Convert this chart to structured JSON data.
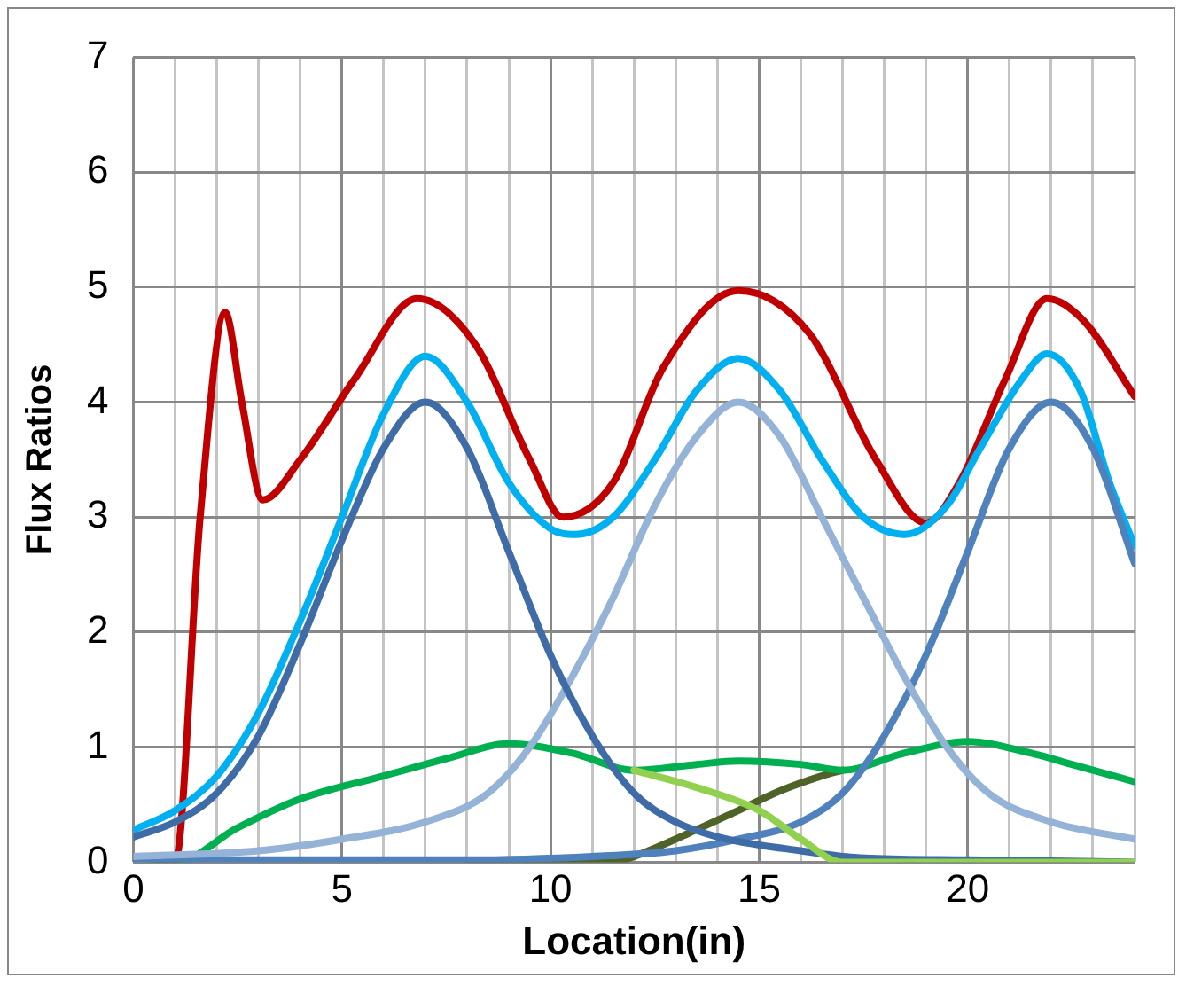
{
  "chart_data": {
    "type": "line",
    "xlabel": "Location(in)",
    "ylabel": "Flux Ratios",
    "xlim": [
      0,
      24
    ],
    "ylim": [
      0,
      7
    ],
    "xticks": [
      0,
      {
        "value": 1,
        "label": null
      },
      {
        "value": 2,
        "label": null
      },
      {
        "value": 3,
        "label": null
      },
      {
        "value": 4,
        "label": null
      },
      5,
      {
        "value": 6,
        "label": null
      },
      {
        "value": 7,
        "label": null
      },
      {
        "value": 8,
        "label": null
      },
      {
        "value": 9,
        "label": null
      },
      10,
      {
        "value": 11,
        "label": null
      },
      {
        "value": 12,
        "label": null
      },
      {
        "value": 13,
        "label": null
      },
      {
        "value": 14,
        "label": null
      },
      15,
      {
        "value": 16,
        "label": null
      },
      {
        "value": 17,
        "label": null
      },
      {
        "value": 18,
        "label": null
      },
      {
        "value": 19,
        "label": null
      },
      20,
      {
        "value": 21,
        "label": null
      },
      {
        "value": 22,
        "label": null
      },
      {
        "value": 23,
        "label": null
      },
      {
        "value": 24,
        "label": null
      }
    ],
    "yticks": [
      0,
      1,
      2,
      3,
      4,
      5,
      6,
      7
    ],
    "grid": true,
    "legend": false,
    "series": [
      {
        "color": "#92d050",
        "x": [
          12,
          13.5,
          15,
          16,
          17,
          20,
          24
        ],
        "values": [
          0.8,
          0.65,
          0.45,
          0.2,
          0,
          0,
          0
        ]
      },
      {
        "color": "#3f6ca6",
        "x": [
          0,
          1,
          2,
          3,
          4,
          5,
          6,
          7,
          8,
          9,
          10,
          11,
          12,
          13,
          14,
          15,
          16,
          17,
          18,
          20,
          22,
          24
        ],
        "values": [
          0.22,
          0.35,
          0.6,
          1.1,
          1.9,
          2.8,
          3.6,
          4.0,
          3.6,
          2.7,
          1.8,
          1.1,
          0.6,
          0.35,
          0.22,
          0.15,
          0.1,
          0.05,
          0.03,
          0.02,
          0.01,
          0
        ]
      },
      {
        "color": "#95b3d7",
        "x": [
          0,
          3,
          5,
          7,
          8.5,
          9.5,
          10.5,
          11.5,
          12.5,
          13.5,
          14.5,
          15.5,
          16.5,
          17.5,
          18.5,
          19.5,
          20.5,
          22,
          24
        ],
        "values": [
          0.05,
          0.1,
          0.2,
          0.35,
          0.6,
          1.0,
          1.6,
          2.3,
          3.1,
          3.7,
          4.0,
          3.7,
          3.0,
          2.3,
          1.6,
          1.0,
          0.6,
          0.35,
          0.2
        ]
      },
      {
        "color": "#4f81bd",
        "x": [
          0,
          4,
          8,
          11,
          13,
          14.5,
          16,
          17,
          18,
          19,
          20,
          21,
          22,
          23,
          24
        ],
        "values": [
          0.02,
          0.02,
          0.02,
          0.05,
          0.1,
          0.2,
          0.35,
          0.6,
          1.1,
          1.8,
          2.7,
          3.6,
          4.0,
          3.6,
          2.6
        ]
      },
      {
        "color": "#00b050",
        "x": [
          0,
          1,
          2.5,
          4,
          6,
          7.5,
          9,
          10.5,
          12,
          13.5,
          14.5,
          16,
          17,
          18.5,
          20,
          21.5,
          22.5,
          24
        ],
        "values": [
          0.05,
          0,
          0.3,
          0.55,
          0.75,
          0.9,
          1.03,
          0.95,
          0.8,
          0.85,
          0.88,
          0.85,
          0.8,
          0.95,
          1.05,
          0.95,
          0.85,
          0.7
        ]
      },
      {
        "color": "#4f6228",
        "x": [
          8,
          11.5,
          12,
          13.3,
          14.5,
          15.5,
          16.5,
          17
        ],
        "values": [
          0,
          0,
          0.05,
          0.25,
          0.45,
          0.62,
          0.75,
          0.8
        ]
      },
      {
        "color": "#00b0f0",
        "x": [
          0,
          1,
          2,
          3,
          4,
          5,
          6,
          7,
          8,
          9,
          10,
          10.6,
          11.5,
          12.5,
          13.5,
          14.5,
          15.5,
          16.5,
          17.5,
          18.5,
          19.5,
          20.3,
          21.3,
          21.9,
          22.7,
          23.4,
          24
        ],
        "values": [
          0.28,
          0.45,
          0.75,
          1.3,
          2.1,
          3.0,
          3.9,
          4.4,
          4.0,
          3.3,
          2.9,
          2.85,
          3.0,
          3.5,
          4.1,
          4.38,
          4.1,
          3.5,
          3.0,
          2.85,
          3.1,
          3.6,
          4.2,
          4.42,
          4.1,
          3.3,
          2.75
        ]
      },
      {
        "color": "#c00000",
        "x": [
          0.6,
          1.0,
          1.6,
          2.2,
          2.6,
          3.1,
          4,
          5.3,
          6.8,
          8.2,
          9.5,
          10.3,
          11.5,
          12.7,
          14.5,
          16.2,
          17.8,
          19,
          19.8,
          20.9,
          21.9,
          22.8,
          24
        ],
        "values": [
          0,
          0,
          3.0,
          4.78,
          4.0,
          3.15,
          3.5,
          4.2,
          4.9,
          4.5,
          3.5,
          3.0,
          3.3,
          4.3,
          4.97,
          4.6,
          3.5,
          2.95,
          3.3,
          4.2,
          4.9,
          4.7,
          4.05
        ]
      }
    ]
  }
}
